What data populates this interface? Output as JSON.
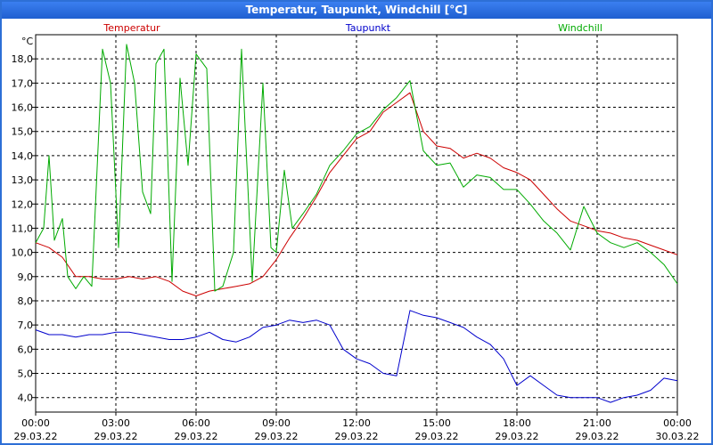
{
  "window": {
    "title": "Temperatur, Taupunkt, Windchill [°C]"
  },
  "colors": {
    "temperatur": "#cc0000",
    "taupunkt": "#0000cc",
    "windchill": "#00aa00",
    "grid": "#000000",
    "titlebar": "#2d6fd6"
  },
  "chart_data": {
    "type": "line",
    "title": "Temperatur, Taupunkt, Windchill [°C]",
    "ylabel": "°C",
    "xlabel": "",
    "ylim": [
      3.4,
      19.0
    ],
    "xlim": [
      0,
      24
    ],
    "grid": true,
    "legend_position": "top",
    "yticks": [
      {
        "value": 4.0,
        "label": "4,0"
      },
      {
        "value": 5.0,
        "label": "5,0"
      },
      {
        "value": 6.0,
        "label": "6,0"
      },
      {
        "value": 7.0,
        "label": "7,0"
      },
      {
        "value": 8.0,
        "label": "8,0"
      },
      {
        "value": 9.0,
        "label": "9,0"
      },
      {
        "value": 10.0,
        "label": "10,0"
      },
      {
        "value": 11.0,
        "label": "11,0"
      },
      {
        "value": 12.0,
        "label": "12,0"
      },
      {
        "value": 13.0,
        "label": "13,0"
      },
      {
        "value": 14.0,
        "label": "14,0"
      },
      {
        "value": 15.0,
        "label": "15,0"
      },
      {
        "value": 16.0,
        "label": "16,0"
      },
      {
        "value": 17.0,
        "label": "17,0"
      },
      {
        "value": 18.0,
        "label": "18,0"
      }
    ],
    "xticks": [
      {
        "value": 0,
        "time": "00:00",
        "date": "29.03.22"
      },
      {
        "value": 3,
        "time": "03:00",
        "date": "29.03.22"
      },
      {
        "value": 6,
        "time": "06:00",
        "date": "29.03.22"
      },
      {
        "value": 9,
        "time": "09:00",
        "date": "29.03.22"
      },
      {
        "value": 12,
        "time": "12:00",
        "date": "29.03.22"
      },
      {
        "value": 15,
        "time": "15:00",
        "date": "29.03.22"
      },
      {
        "value": 18,
        "time": "18:00",
        "date": "29.03.22"
      },
      {
        "value": 21,
        "time": "21:00",
        "date": "29.03.22"
      },
      {
        "value": 24,
        "time": "00:00",
        "date": "30.03.22"
      }
    ],
    "series": [
      {
        "name": "Temperatur",
        "color": "#cc0000",
        "points": [
          [
            0,
            10.4
          ],
          [
            0.5,
            10.2
          ],
          [
            1.0,
            9.8
          ],
          [
            1.5,
            9.0
          ],
          [
            2.0,
            9.0
          ],
          [
            2.5,
            8.9
          ],
          [
            3.0,
            8.9
          ],
          [
            3.5,
            9.0
          ],
          [
            4.0,
            8.9
          ],
          [
            4.5,
            9.0
          ],
          [
            5.0,
            8.8
          ],
          [
            5.5,
            8.4
          ],
          [
            6.0,
            8.2
          ],
          [
            6.5,
            8.4
          ],
          [
            7.0,
            8.5
          ],
          [
            7.5,
            8.6
          ],
          [
            8.0,
            8.7
          ],
          [
            8.5,
            9.0
          ],
          [
            9.0,
            9.7
          ],
          [
            9.5,
            10.6
          ],
          [
            10.0,
            11.4
          ],
          [
            10.5,
            12.3
          ],
          [
            11.0,
            13.3
          ],
          [
            11.5,
            14.0
          ],
          [
            12.0,
            14.7
          ],
          [
            12.5,
            15.0
          ],
          [
            13.0,
            15.8
          ],
          [
            13.5,
            16.2
          ],
          [
            14.0,
            16.6
          ],
          [
            14.5,
            15.0
          ],
          [
            15.0,
            14.4
          ],
          [
            15.5,
            14.3
          ],
          [
            16.0,
            13.9
          ],
          [
            16.5,
            14.1
          ],
          [
            17.0,
            13.9
          ],
          [
            17.5,
            13.5
          ],
          [
            18.0,
            13.3
          ],
          [
            18.5,
            13.0
          ],
          [
            19.0,
            12.4
          ],
          [
            19.5,
            11.8
          ],
          [
            20.0,
            11.3
          ],
          [
            20.5,
            11.1
          ],
          [
            21.0,
            10.9
          ],
          [
            21.5,
            10.8
          ],
          [
            22.0,
            10.6
          ],
          [
            22.5,
            10.5
          ],
          [
            23.0,
            10.3
          ],
          [
            23.5,
            10.1
          ],
          [
            24.0,
            9.9
          ]
        ]
      },
      {
        "name": "Taupunkt",
        "color": "#0000cc",
        "points": [
          [
            0,
            6.8
          ],
          [
            0.5,
            6.6
          ],
          [
            1.0,
            6.6
          ],
          [
            1.5,
            6.5
          ],
          [
            2.0,
            6.6
          ],
          [
            2.5,
            6.6
          ],
          [
            3.0,
            6.7
          ],
          [
            3.5,
            6.7
          ],
          [
            4.0,
            6.6
          ],
          [
            4.5,
            6.5
          ],
          [
            5.0,
            6.4
          ],
          [
            5.5,
            6.4
          ],
          [
            6.0,
            6.5
          ],
          [
            6.5,
            6.7
          ],
          [
            7.0,
            6.4
          ],
          [
            7.5,
            6.3
          ],
          [
            8.0,
            6.5
          ],
          [
            8.5,
            6.9
          ],
          [
            9.0,
            7.0
          ],
          [
            9.5,
            7.2
          ],
          [
            10.0,
            7.1
          ],
          [
            10.5,
            7.2
          ],
          [
            11.0,
            7.0
          ],
          [
            11.5,
            6.0
          ],
          [
            12.0,
            5.6
          ],
          [
            12.5,
            5.4
          ],
          [
            13.0,
            5.0
          ],
          [
            13.5,
            4.9
          ],
          [
            14.0,
            7.6
          ],
          [
            14.5,
            7.4
          ],
          [
            15.0,
            7.3
          ],
          [
            15.5,
            7.1
          ],
          [
            16.0,
            6.9
          ],
          [
            16.5,
            6.5
          ],
          [
            17.0,
            6.2
          ],
          [
            17.5,
            5.6
          ],
          [
            18.0,
            4.5
          ],
          [
            18.5,
            4.9
          ],
          [
            19.0,
            4.5
          ],
          [
            19.5,
            4.1
          ],
          [
            20.0,
            4.0
          ],
          [
            20.5,
            4.0
          ],
          [
            21.0,
            4.0
          ],
          [
            21.5,
            3.8
          ],
          [
            22.0,
            4.0
          ],
          [
            22.5,
            4.1
          ],
          [
            23.0,
            4.3
          ],
          [
            23.5,
            4.8
          ],
          [
            24.0,
            4.7
          ]
        ]
      },
      {
        "name": "Windchill",
        "color": "#00aa00",
        "points": [
          [
            0,
            10.4
          ],
          [
            0.3,
            11.0
          ],
          [
            0.5,
            14.0
          ],
          [
            0.7,
            10.5
          ],
          [
            1.0,
            11.4
          ],
          [
            1.2,
            9.0
          ],
          [
            1.5,
            8.5
          ],
          [
            1.8,
            9.0
          ],
          [
            2.1,
            8.6
          ],
          [
            2.5,
            18.4
          ],
          [
            2.8,
            17.0
          ],
          [
            3.1,
            10.2
          ],
          [
            3.4,
            18.6
          ],
          [
            3.7,
            17.0
          ],
          [
            4.0,
            12.5
          ],
          [
            4.3,
            11.6
          ],
          [
            4.5,
            17.8
          ],
          [
            4.8,
            18.4
          ],
          [
            5.1,
            8.8
          ],
          [
            5.4,
            17.2
          ],
          [
            5.7,
            13.6
          ],
          [
            6.0,
            18.2
          ],
          [
            6.4,
            17.6
          ],
          [
            6.7,
            8.4
          ],
          [
            7.0,
            8.6
          ],
          [
            7.4,
            10.0
          ],
          [
            7.7,
            18.4
          ],
          [
            8.1,
            8.8
          ],
          [
            8.5,
            17.0
          ],
          [
            8.8,
            10.2
          ],
          [
            9.0,
            10.0
          ],
          [
            9.3,
            13.4
          ],
          [
            9.6,
            11.0
          ],
          [
            10.0,
            11.6
          ],
          [
            10.5,
            12.4
          ],
          [
            11.0,
            13.6
          ],
          [
            11.5,
            14.2
          ],
          [
            12.0,
            14.9
          ],
          [
            12.5,
            15.2
          ],
          [
            13.0,
            15.9
          ],
          [
            13.5,
            16.4
          ],
          [
            14.0,
            17.1
          ],
          [
            14.5,
            14.2
          ],
          [
            15.0,
            13.6
          ],
          [
            15.5,
            13.7
          ],
          [
            16.0,
            12.7
          ],
          [
            16.5,
            13.2
          ],
          [
            17.0,
            13.1
          ],
          [
            17.5,
            12.6
          ],
          [
            18.0,
            12.6
          ],
          [
            18.5,
            12.0
          ],
          [
            19.0,
            11.3
          ],
          [
            19.5,
            10.8
          ],
          [
            20.0,
            10.1
          ],
          [
            20.5,
            11.9
          ],
          [
            21.0,
            10.8
          ],
          [
            21.5,
            10.4
          ],
          [
            22.0,
            10.2
          ],
          [
            22.5,
            10.4
          ],
          [
            23.0,
            10.0
          ],
          [
            23.5,
            9.5
          ],
          [
            24.0,
            8.7
          ]
        ]
      }
    ]
  }
}
